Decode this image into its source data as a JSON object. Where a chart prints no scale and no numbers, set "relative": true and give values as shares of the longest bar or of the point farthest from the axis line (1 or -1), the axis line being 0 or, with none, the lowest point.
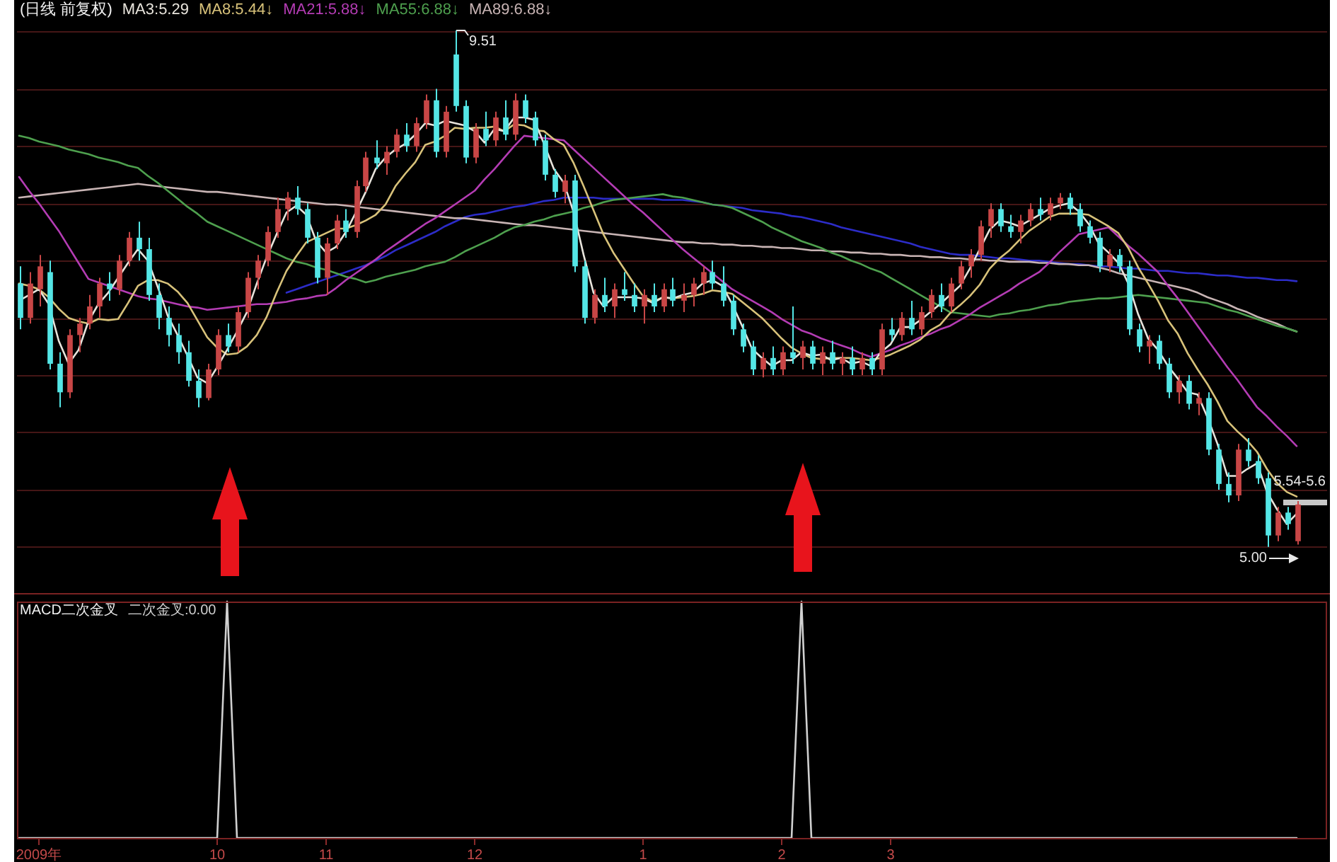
{
  "chart_data": [
    {
      "type": "candlestick",
      "title": "(日线 前复权)",
      "categories": [
        null,
        null,
        null,
        null,
        null,
        null,
        null,
        null,
        null,
        null,
        null,
        null,
        null,
        null,
        null,
        null,
        null,
        null,
        null,
        null,
        null,
        null,
        null,
        null,
        null,
        null,
        null,
        null,
        null,
        null,
        null,
        null,
        null,
        null,
        null,
        null,
        null,
        null,
        null,
        null,
        null,
        null,
        null,
        null,
        null,
        null,
        null,
        null,
        null,
        null,
        null,
        null,
        null,
        null,
        null,
        null,
        null,
        null,
        null,
        null,
        null,
        null,
        null,
        null,
        null,
        null,
        null,
        null,
        null,
        null,
        null,
        null,
        null,
        null,
        null,
        null,
        null,
        null,
        null,
        null,
        null,
        null,
        null,
        null,
        null,
        null,
        null,
        null,
        null,
        null,
        null,
        null,
        null,
        null,
        null,
        null,
        null,
        null,
        null,
        null,
        null,
        null,
        null,
        null,
        null,
        null,
        null,
        null,
        null,
        null,
        null,
        null,
        null,
        null,
        null,
        null,
        null,
        null,
        null,
        null,
        null,
        null,
        null,
        null,
        null,
        null,
        null,
        null,
        null,
        null
      ],
      "ohlc": [
        [
          7.3,
          7.45,
          6.9,
          7.0
        ],
        [
          7.0,
          7.4,
          6.95,
          7.3
        ],
        [
          7.25,
          7.55,
          7.1,
          7.45
        ],
        [
          7.4,
          7.5,
          6.55,
          6.6
        ],
        [
          6.6,
          6.7,
          6.22,
          6.35
        ],
        [
          6.35,
          6.9,
          6.3,
          6.85
        ],
        [
          6.85,
          7.0,
          6.7,
          6.95
        ],
        [
          6.95,
          7.2,
          6.9,
          7.1
        ],
        [
          7.1,
          7.35,
          7.0,
          7.3
        ],
        [
          7.3,
          7.4,
          7.15,
          7.25
        ],
        [
          7.25,
          7.55,
          7.2,
          7.5
        ],
        [
          7.5,
          7.75,
          7.45,
          7.7
        ],
        [
          7.7,
          7.84,
          7.5,
          7.6
        ],
        [
          7.6,
          7.7,
          7.15,
          7.2
        ],
        [
          7.2,
          7.3,
          6.9,
          7.0
        ],
        [
          7.0,
          7.1,
          6.75,
          6.85
        ],
        [
          6.85,
          6.95,
          6.6,
          6.7
        ],
        [
          6.7,
          6.8,
          6.4,
          6.45
        ],
        [
          6.45,
          6.55,
          6.22,
          6.3
        ],
        [
          6.3,
          6.6,
          6.28,
          6.55
        ],
        [
          6.55,
          6.9,
          6.5,
          6.85
        ],
        [
          6.85,
          6.95,
          6.7,
          6.75
        ],
        [
          6.75,
          7.1,
          6.7,
          7.05
        ],
        [
          7.05,
          7.4,
          7.0,
          7.35
        ],
        [
          7.35,
          7.55,
          7.25,
          7.5
        ],
        [
          7.5,
          7.8,
          7.45,
          7.75
        ],
        [
          7.75,
          8.05,
          7.7,
          7.95
        ],
        [
          7.95,
          8.1,
          7.85,
          8.05
        ],
        [
          8.05,
          8.15,
          7.9,
          7.95
        ],
        [
          7.95,
          8.0,
          7.65,
          7.7
        ],
        [
          7.7,
          7.75,
          7.3,
          7.35
        ],
        [
          7.35,
          7.7,
          7.2,
          7.65
        ],
        [
          7.65,
          7.9,
          7.6,
          7.85
        ],
        [
          7.85,
          7.95,
          7.7,
          7.75
        ],
        [
          7.75,
          8.2,
          7.7,
          8.15
        ],
        [
          8.15,
          8.45,
          8.1,
          8.4
        ],
        [
          8.4,
          8.55,
          8.3,
          8.35
        ],
        [
          8.35,
          8.5,
          8.25,
          8.45
        ],
        [
          8.45,
          8.65,
          8.4,
          8.6
        ],
        [
          8.6,
          8.7,
          8.45,
          8.5
        ],
        [
          8.5,
          8.75,
          8.45,
          8.7
        ],
        [
          8.7,
          8.95,
          8.65,
          8.9
        ],
        [
          8.9,
          9.0,
          8.4,
          8.45
        ],
        [
          8.45,
          8.85,
          8.4,
          8.8
        ],
        [
          9.3,
          9.51,
          8.8,
          8.85
        ],
        [
          8.85,
          8.9,
          8.35,
          8.4
        ],
        [
          8.4,
          8.7,
          8.35,
          8.65
        ],
        [
          8.65,
          8.8,
          8.5,
          8.55
        ],
        [
          8.55,
          8.8,
          8.5,
          8.75
        ],
        [
          8.75,
          8.9,
          8.55,
          8.6
        ],
        [
          8.6,
          8.96,
          8.55,
          8.9
        ],
        [
          8.9,
          8.95,
          8.7,
          8.75
        ],
        [
          8.75,
          8.8,
          8.5,
          8.55
        ],
        [
          8.55,
          8.6,
          8.2,
          8.25
        ],
        [
          8.25,
          8.3,
          8.05,
          8.1
        ],
        [
          8.1,
          8.25,
          8.0,
          8.2
        ],
        [
          8.2,
          8.25,
          7.4,
          7.45
        ],
        [
          7.45,
          7.5,
          6.95,
          7.0
        ],
        [
          7.0,
          7.25,
          6.95,
          7.2
        ],
        [
          7.2,
          7.35,
          7.05,
          7.1
        ],
        [
          7.1,
          7.3,
          7.0,
          7.25
        ],
        [
          7.25,
          7.4,
          7.15,
          7.2
        ],
        [
          7.2,
          7.3,
          7.05,
          7.1
        ],
        [
          7.1,
          7.25,
          6.95,
          7.2
        ],
        [
          7.2,
          7.3,
          7.05,
          7.1
        ],
        [
          7.1,
          7.3,
          7.05,
          7.25
        ],
        [
          7.25,
          7.35,
          7.1,
          7.15
        ],
        [
          7.15,
          7.3,
          7.05,
          7.2
        ],
        [
          7.2,
          7.35,
          7.1,
          7.3
        ],
        [
          7.3,
          7.45,
          7.2,
          7.4
        ],
        [
          7.4,
          7.5,
          7.25,
          7.3
        ],
        [
          7.3,
          7.45,
          7.1,
          7.15
        ],
        [
          7.15,
          7.2,
          6.85,
          6.9
        ],
        [
          6.9,
          6.95,
          6.7,
          6.75
        ],
        [
          6.75,
          6.8,
          6.5,
          6.55
        ],
        [
          6.55,
          6.7,
          6.48,
          6.65
        ],
        [
          6.65,
          6.75,
          6.5,
          6.55
        ],
        [
          6.55,
          6.75,
          6.5,
          6.7
        ],
        [
          6.7,
          7.1,
          6.6,
          6.65
        ],
        [
          6.65,
          6.8,
          6.55,
          6.75
        ],
        [
          6.75,
          6.8,
          6.55,
          6.6
        ],
        [
          6.6,
          6.75,
          6.5,
          6.7
        ],
        [
          6.7,
          6.8,
          6.55,
          6.6
        ],
        [
          6.6,
          6.7,
          6.5,
          6.65
        ],
        [
          6.65,
          6.75,
          6.5,
          6.55
        ],
        [
          6.55,
          6.7,
          6.5,
          6.65
        ],
        [
          6.65,
          6.7,
          6.5,
          6.55
        ],
        [
          6.55,
          6.95,
          6.5,
          6.9
        ],
        [
          6.9,
          7.0,
          6.8,
          6.85
        ],
        [
          6.85,
          7.05,
          6.8,
          7.0
        ],
        [
          7.0,
          7.15,
          6.85,
          6.9
        ],
        [
          6.9,
          7.1,
          6.85,
          7.05
        ],
        [
          7.05,
          7.25,
          7.0,
          7.2
        ],
        [
          7.2,
          7.3,
          7.05,
          7.1
        ],
        [
          7.1,
          7.35,
          7.05,
          7.3
        ],
        [
          7.3,
          7.5,
          7.25,
          7.45
        ],
        [
          7.45,
          7.6,
          7.35,
          7.55
        ],
        [
          7.55,
          7.85,
          7.5,
          7.8
        ],
        [
          7.8,
          8.0,
          7.7,
          7.95
        ],
        [
          7.95,
          8.0,
          7.75,
          7.8
        ],
        [
          7.8,
          7.9,
          7.7,
          7.75
        ],
        [
          7.75,
          7.9,
          7.65,
          7.85
        ],
        [
          7.85,
          8.0,
          7.8,
          7.95
        ],
        [
          7.95,
          8.05,
          7.85,
          7.9
        ],
        [
          7.9,
          8.05,
          7.85,
          8.0
        ],
        [
          8.0,
          8.09,
          7.95,
          8.05
        ],
        [
          8.05,
          8.09,
          7.9,
          7.95
        ],
        [
          7.95,
          8.0,
          7.75,
          7.8
        ],
        [
          7.8,
          7.85,
          7.65,
          7.7
        ],
        [
          7.7,
          7.75,
          7.4,
          7.45
        ],
        [
          7.45,
          7.6,
          7.4,
          7.55
        ],
        [
          7.55,
          7.6,
          7.4,
          7.45
        ],
        [
          7.45,
          7.5,
          6.85,
          6.9
        ],
        [
          6.9,
          6.95,
          6.7,
          6.75
        ],
        [
          6.75,
          6.85,
          6.6,
          6.8
        ],
        [
          6.8,
          6.85,
          6.55,
          6.6
        ],
        [
          6.6,
          6.65,
          6.3,
          6.35
        ],
        [
          6.35,
          6.5,
          6.25,
          6.45
        ],
        [
          6.45,
          6.5,
          6.2,
          6.25
        ],
        [
          6.25,
          6.35,
          6.15,
          6.3
        ],
        [
          6.3,
          6.35,
          5.8,
          5.85
        ],
        [
          5.85,
          5.9,
          5.5,
          5.55
        ],
        [
          5.55,
          5.65,
          5.39,
          5.45
        ],
        [
          5.45,
          5.9,
          5.4,
          5.85
        ],
        [
          5.85,
          5.95,
          5.7,
          5.75
        ],
        [
          5.75,
          5.8,
          5.55,
          5.6
        ],
        [
          5.6,
          5.65,
          5.0,
          5.1
        ],
        [
          5.1,
          5.35,
          5.05,
          5.3
        ],
        [
          5.3,
          5.35,
          5.15,
          5.2
        ],
        [
          5.05,
          5.4,
          5.02,
          5.37
        ]
      ],
      "colors": [
        "#54e6e6",
        "#c84646",
        "#c84646",
        "#54e6e6",
        "#54e6e6",
        "#c84646",
        "#c84646",
        "#c84646",
        "#c84646",
        "#54e6e6",
        "#c84646",
        "#c84646",
        "#54e6e6",
        "#54e6e6",
        "#54e6e6",
        "#54e6e6",
        "#54e6e6",
        "#54e6e6",
        "#54e6e6",
        "#c84646",
        "#c84646",
        "#54e6e6",
        "#c84646",
        "#c84646",
        "#c84646",
        "#c84646",
        "#c84646",
        "#c84646",
        "#54e6e6",
        "#54e6e6",
        "#54e6e6",
        "#c84646",
        "#c84646",
        "#54e6e6",
        "#c84646",
        "#c84646",
        "#54e6e6",
        "#c84646",
        "#c84646",
        "#54e6e6",
        "#c84646",
        "#c84646",
        "#54e6e6",
        "#c84646",
        "#54e6e6",
        "#54e6e6",
        "#c84646",
        "#54e6e6",
        "#c84646",
        "#54e6e6",
        "#c84646",
        "#54e6e6",
        "#54e6e6",
        "#54e6e6",
        "#54e6e6",
        "#c84646",
        "#54e6e6",
        "#54e6e6",
        "#c84646",
        "#54e6e6",
        "#c84646",
        "#54e6e6",
        "#54e6e6",
        "#c84646",
        "#54e6e6",
        "#c84646",
        "#54e6e6",
        "#c84646",
        "#c84646",
        "#c84646",
        "#54e6e6",
        "#54e6e6",
        "#54e6e6",
        "#54e6e6",
        "#54e6e6",
        "#c84646",
        "#54e6e6",
        "#c84646",
        "#54e6e6",
        "#c84646",
        "#54e6e6",
        "#c84646",
        "#54e6e6",
        "#c84646",
        "#54e6e6",
        "#c84646",
        "#54e6e6",
        "#c84646",
        "#54e6e6",
        "#c84646",
        "#54e6e6",
        "#c84646",
        "#c84646",
        "#54e6e6",
        "#c84646",
        "#c84646",
        "#c84646",
        "#c84646",
        "#c84646",
        "#54e6e6",
        "#54e6e6",
        "#c84646",
        "#c84646",
        "#54e6e6",
        "#c84646",
        "#c84646",
        "#54e6e6",
        "#54e6e6",
        "#54e6e6",
        "#54e6e6",
        "#c84646",
        "#54e6e6",
        "#54e6e6",
        "#54e6e6",
        "#c84646",
        "#54e6e6",
        "#54e6e6",
        "#c84646",
        "#54e6e6",
        "#c84646",
        "#54e6e6",
        "#54e6e6",
        "#54e6e6",
        "#c84646",
        "#54e6e6",
        "#54e6e6",
        "#54e6e6",
        "#c84646",
        "#54e6e6",
        "#c84646"
      ],
      "series": [
        {
          "name": "MA3:5.29",
          "type": "line",
          "color": "#e8e4dc",
          "values": [
            7.15,
            7.2,
            7.25,
            7.12,
            6.8,
            6.6,
            6.72,
            6.97,
            7.12,
            7.22,
            7.35,
            7.48,
            7.6,
            7.5,
            7.27,
            7.02,
            6.85,
            6.67,
            6.48,
            6.43,
            6.57,
            6.72,
            6.88,
            7.05,
            7.3,
            7.53,
            7.73,
            7.92,
            7.98,
            7.9,
            7.67,
            7.57,
            7.62,
            7.75,
            7.92,
            8.1,
            8.3,
            8.4,
            8.47,
            8.52,
            8.6,
            8.7,
            8.68,
            8.72,
            8.7,
            8.68,
            8.63,
            8.53,
            8.65,
            8.63,
            8.75,
            8.75,
            8.73,
            8.52,
            8.3,
            8.18,
            7.92,
            7.55,
            7.22,
            7.1,
            7.18,
            7.18,
            7.18,
            7.17,
            7.13,
            7.18,
            7.17,
            7.2,
            7.22,
            7.3,
            7.33,
            7.28,
            7.12,
            6.93,
            6.73,
            6.65,
            6.58,
            6.63,
            6.63,
            6.7,
            6.67,
            6.68,
            6.63,
            6.65,
            6.6,
            6.62,
            6.58,
            6.7,
            6.77,
            6.92,
            6.92,
            6.98,
            7.05,
            7.12,
            7.2,
            7.28,
            7.43,
            7.6,
            7.77,
            7.85,
            7.83,
            7.8,
            7.85,
            7.9,
            7.95,
            7.98,
            8.0,
            7.93,
            7.82,
            7.65,
            7.57,
            7.48,
            7.3,
            7.03,
            6.82,
            6.72,
            6.58,
            6.47,
            6.35,
            6.33,
            6.13,
            5.9,
            5.62,
            5.62,
            5.68,
            5.73,
            5.48,
            5.33,
            5.2,
            5.29
          ]
        },
        {
          "name": "MA8:5.44↓",
          "type": "line",
          "color": "#d8c27a",
          "values": [
            7.3,
            7.28,
            7.25,
            7.18,
            7.08,
            7.0,
            6.97,
            6.95,
            6.99,
            6.98,
            6.99,
            7.13,
            7.28,
            7.33,
            7.33,
            7.3,
            7.23,
            7.13,
            6.98,
            6.83,
            6.74,
            6.68,
            6.69,
            6.75,
            6.85,
            7.01,
            7.22,
            7.41,
            7.54,
            7.66,
            7.7,
            7.74,
            7.78,
            7.78,
            7.81,
            7.85,
            7.9,
            7.99,
            8.15,
            8.26,
            8.36,
            8.51,
            8.54,
            8.59,
            8.66,
            8.65,
            8.66,
            8.66,
            8.67,
            8.63,
            8.69,
            8.68,
            8.64,
            8.63,
            8.56,
            8.51,
            8.35,
            8.15,
            7.94,
            7.73,
            7.57,
            7.44,
            7.31,
            7.19,
            7.14,
            7.18,
            7.17,
            7.18,
            7.19,
            7.21,
            7.24,
            7.23,
            7.21,
            7.14,
            7.07,
            7.0,
            6.91,
            6.82,
            6.74,
            6.69,
            6.65,
            6.64,
            6.65,
            6.65,
            6.65,
            6.64,
            6.63,
            6.65,
            6.68,
            6.72,
            6.76,
            6.81,
            6.89,
            6.94,
            7.04,
            7.11,
            7.19,
            7.29,
            7.43,
            7.52,
            7.59,
            7.68,
            7.76,
            7.82,
            7.88,
            7.91,
            7.91,
            7.91,
            7.9,
            7.85,
            7.8,
            7.74,
            7.61,
            7.44,
            7.3,
            7.15,
            6.98,
            6.86,
            6.69,
            6.55,
            6.42,
            6.27,
            6.1,
            6.01,
            5.93,
            5.83,
            5.68,
            5.56,
            5.48,
            5.44
          ]
        },
        {
          "name": "MA21:5.88↓",
          "type": "line",
          "color": "#b43cb4",
          "values": [
            8.23,
            8.11,
            8.0,
            7.88,
            7.76,
            7.62,
            7.48,
            7.34,
            7.31,
            7.28,
            7.25,
            7.22,
            7.19,
            7.17,
            7.16,
            7.14,
            7.12,
            7.1,
            7.09,
            7.07,
            7.08,
            7.09,
            7.1,
            7.11,
            7.12,
            7.12,
            7.13,
            7.14,
            7.16,
            7.17,
            7.19,
            7.2,
            7.26,
            7.33,
            7.39,
            7.45,
            7.51,
            7.58,
            7.64,
            7.7,
            7.76,
            7.82,
            7.87,
            7.93,
            7.99,
            8.05,
            8.11,
            8.21,
            8.3,
            8.4,
            8.5,
            8.59,
            8.58,
            8.57,
            8.56,
            8.55,
            8.47,
            8.39,
            8.31,
            8.23,
            8.15,
            8.07,
            7.99,
            7.92,
            7.84,
            7.76,
            7.68,
            7.6,
            7.53,
            7.46,
            7.39,
            7.32,
            7.25,
            7.2,
            7.15,
            7.1,
            7.05,
            6.99,
            6.94,
            6.89,
            6.86,
            6.82,
            6.79,
            6.76,
            6.73,
            6.69,
            6.66,
            6.69,
            6.72,
            6.76,
            6.79,
            6.83,
            6.86,
            6.9,
            6.93,
            6.98,
            7.03,
            7.09,
            7.14,
            7.19,
            7.24,
            7.3,
            7.35,
            7.4,
            7.48,
            7.57,
            7.65,
            7.73,
            7.75,
            7.77,
            7.79,
            7.71,
            7.63,
            7.56,
            7.48,
            7.4,
            7.28,
            7.17,
            7.05,
            6.93,
            6.81,
            6.69,
            6.57,
            6.46,
            6.34,
            6.22,
            6.14,
            6.05,
            5.97,
            5.88
          ]
        },
        {
          "name": "MA55:6.88↓",
          "type": "line",
          "color": "#4ea04e",
          "values": [
            8.59,
            8.57,
            8.54,
            8.52,
            8.5,
            8.47,
            8.45,
            8.43,
            8.4,
            8.38,
            8.36,
            8.33,
            8.31,
            8.24,
            8.18,
            8.11,
            8.04,
            7.97,
            7.91,
            7.84,
            7.8,
            7.76,
            7.72,
            7.68,
            7.64,
            7.6,
            7.56,
            7.52,
            7.49,
            7.47,
            7.44,
            7.42,
            7.39,
            7.36,
            7.34,
            7.31,
            7.33,
            7.36,
            7.38,
            7.4,
            7.42,
            7.45,
            7.47,
            7.49,
            7.53,
            7.58,
            7.62,
            7.66,
            7.7,
            7.75,
            7.79,
            7.81,
            7.84,
            7.86,
            7.89,
            7.91,
            7.93,
            7.96,
            7.98,
            8.01,
            8.03,
            8.04,
            8.05,
            8.06,
            8.07,
            8.08,
            8.06,
            8.05,
            8.03,
            8.01,
            7.99,
            7.98,
            7.96,
            7.92,
            7.88,
            7.84,
            7.79,
            7.75,
            7.71,
            7.67,
            7.64,
            7.61,
            7.57,
            7.54,
            7.5,
            7.47,
            7.43,
            7.4,
            7.35,
            7.3,
            7.25,
            7.2,
            7.15,
            7.1,
            7.05,
            7.04,
            7.03,
            7.02,
            7.01,
            7.03,
            7.04,
            7.06,
            7.07,
            7.09,
            7.11,
            7.12,
            7.14,
            7.15,
            7.16,
            7.17,
            7.17,
            7.18,
            7.19,
            7.2,
            7.19,
            7.18,
            7.17,
            7.16,
            7.15,
            7.14,
            7.13,
            7.1,
            7.07,
            7.05,
            7.02,
            6.99,
            6.96,
            6.93,
            6.91,
            6.88
          ]
        },
        {
          "name": "MA89:6.88↓",
          "type": "line",
          "color": "#c8b4b4",
          "values": [
            8.05,
            8.06,
            8.07,
            8.08,
            8.09,
            8.1,
            8.11,
            8.12,
            8.13,
            8.14,
            8.15,
            8.16,
            8.17,
            8.16,
            8.15,
            8.14,
            8.13,
            8.12,
            8.11,
            8.1,
            8.1,
            8.09,
            8.08,
            8.07,
            8.06,
            8.05,
            8.04,
            8.03,
            8.02,
            8.01,
            8.0,
            7.99,
            7.99,
            7.98,
            7.97,
            7.96,
            7.95,
            7.94,
            7.93,
            7.92,
            7.91,
            7.9,
            7.89,
            7.88,
            7.87,
            7.87,
            7.86,
            7.85,
            7.84,
            7.83,
            7.82,
            7.81,
            7.81,
            7.8,
            7.79,
            7.78,
            7.77,
            7.76,
            7.75,
            7.74,
            7.73,
            7.72,
            7.71,
            7.7,
            7.69,
            7.68,
            7.67,
            7.66,
            7.66,
            7.65,
            7.65,
            7.64,
            7.64,
            7.63,
            7.63,
            7.62,
            7.62,
            7.61,
            7.61,
            7.6,
            7.59,
            7.59,
            7.58,
            7.58,
            7.57,
            7.57,
            7.56,
            7.56,
            7.55,
            7.55,
            7.54,
            7.54,
            7.53,
            7.53,
            7.52,
            7.52,
            7.51,
            7.51,
            7.5,
            7.5,
            7.49,
            7.49,
            7.49,
            7.48,
            7.48,
            7.47,
            7.47,
            7.46,
            7.46,
            7.44,
            7.42,
            7.39,
            7.37,
            7.35,
            7.33,
            7.31,
            7.29,
            7.27,
            7.25,
            7.22,
            7.18,
            7.15,
            7.12,
            7.08,
            7.05,
            7.01,
            6.98,
            6.95,
            6.91,
            6.88
          ]
        },
        {
          "type": "line",
          "color": "#2c2cc8",
          "values": [
            null,
            null,
            null,
            null,
            null,
            null,
            null,
            null,
            null,
            null,
            null,
            null,
            null,
            null,
            null,
            null,
            null,
            null,
            null,
            null,
            null,
            null,
            null,
            null,
            null,
            null,
            null,
            7.22,
            7.25,
            7.28,
            7.31,
            7.34,
            7.37,
            7.4,
            7.43,
            7.46,
            7.5,
            7.54,
            7.59,
            7.63,
            7.67,
            7.71,
            7.75,
            7.8,
            7.84,
            7.88,
            7.9,
            7.91,
            7.93,
            7.95,
            7.97,
            7.98,
            8.0,
            8.02,
            8.03,
            8.05,
            8.05,
            8.05,
            8.05,
            8.04,
            8.04,
            8.04,
            8.04,
            8.04,
            8.04,
            8.03,
            8.03,
            8.03,
            8.02,
            8.01,
            7.99,
            7.98,
            7.97,
            7.96,
            7.94,
            7.93,
            7.92,
            7.91,
            7.89,
            7.88,
            7.86,
            7.84,
            7.82,
            7.79,
            7.77,
            7.75,
            7.73,
            7.71,
            7.69,
            7.67,
            7.65,
            7.62,
            7.6,
            7.58,
            7.56,
            7.55,
            7.55,
            7.54,
            7.53,
            7.52,
            7.52,
            7.51,
            7.5,
            7.5,
            7.49,
            7.48,
            7.47,
            7.47,
            7.46,
            7.45,
            7.45,
            7.44,
            7.43,
            7.43,
            7.42,
            7.41,
            7.41,
            7.4,
            7.39,
            7.39,
            7.38,
            7.37,
            7.37,
            7.36,
            7.35,
            7.35,
            7.34,
            7.33,
            7.33,
            7.32
          ]
        }
      ],
      "yticks": [
        {
          "value": 5,
          "label": null
        },
        {
          "value": 5.5,
          "label": null
        },
        {
          "value": 6,
          "label": null
        },
        {
          "value": 6.5,
          "label": null
        },
        {
          "value": 7,
          "label": null
        },
        {
          "value": 7.5,
          "label": null
        },
        {
          "value": 8,
          "label": null
        },
        {
          "value": 8.5,
          "label": null
        },
        {
          "value": 9,
          "label": null
        },
        {
          "value": 9.5,
          "label": null
        }
      ],
      "grid": "y",
      "legend": "top left",
      "tick_labels": false,
      "annotations": [
        "9.51",
        "5.00",
        "5.54-5.6"
      ]
    },
    {
      "type": "line",
      "title": "MACD二次金叉",
      "relative": true,
      "categories": [
        null,
        null,
        "2009年",
        null,
        null,
        null,
        null,
        null,
        null,
        null,
        null,
        null,
        null,
        null,
        null,
        null,
        null,
        null,
        null,
        null,
        "10",
        null,
        null,
        null,
        null,
        null,
        null,
        null,
        null,
        null,
        null,
        "11",
        null,
        null,
        null,
        null,
        null,
        null,
        null,
        null,
        null,
        null,
        null,
        null,
        null,
        null,
        "12",
        null,
        null,
        null,
        null,
        null,
        null,
        null,
        null,
        null,
        null,
        null,
        null,
        null,
        null,
        null,
        null,
        "1",
        null,
        null,
        null,
        null,
        null,
        null,
        null,
        null,
        null,
        null,
        null,
        null,
        null,
        "2",
        null,
        null,
        null,
        null,
        null,
        null,
        null,
        null,
        null,
        null,
        "3",
        null,
        null,
        null,
        null,
        null,
        null,
        null,
        null,
        null,
        null,
        null,
        null,
        null,
        null,
        null,
        null,
        null,
        null,
        null,
        null,
        null,
        null,
        null,
        null,
        null,
        null,
        null,
        null,
        null,
        null,
        null,
        null,
        null,
        null,
        null,
        null,
        null,
        null,
        null,
        null,
        null
      ],
      "series": [
        {
          "name": "二次金叉:0.00",
          "color": "#d0d0d0",
          "values": [
            0,
            0,
            0,
            0,
            0,
            0,
            0,
            0,
            0,
            0,
            0,
            0,
            0,
            0,
            0,
            0,
            0,
            0,
            0,
            0,
            0,
            1,
            0,
            0,
            0,
            0,
            0,
            0,
            0,
            0,
            0,
            0,
            0,
            0,
            0,
            0,
            0,
            0,
            0,
            0,
            0,
            0,
            0,
            0,
            0,
            0,
            0,
            0,
            0,
            0,
            0,
            0,
            0,
            0,
            0,
            0,
            0,
            0,
            0,
            0,
            0,
            0,
            0,
            0,
            0,
            0,
            0,
            0,
            0,
            0,
            0,
            0,
            0,
            0,
            0,
            0,
            0,
            0,
            0,
            1,
            0,
            0,
            0,
            0,
            0,
            0,
            0,
            0,
            0,
            0,
            0,
            0,
            0,
            0,
            0,
            0,
            0,
            0,
            0,
            0,
            0,
            0,
            0,
            0,
            0,
            0,
            0,
            0,
            0,
            0,
            0,
            0,
            0,
            0,
            0,
            0,
            0,
            0,
            0,
            0,
            0,
            0,
            0,
            0,
            0,
            0,
            0,
            0,
            0,
            0
          ]
        }
      ],
      "tick_labels": "x",
      "legend": "top left"
    }
  ]
}
